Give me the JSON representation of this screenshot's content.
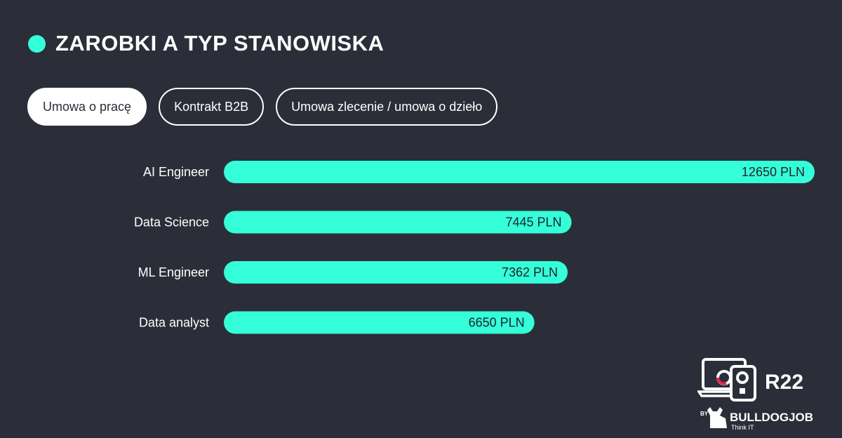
{
  "header": {
    "title": "ZAROBKI A TYP STANOWISKA"
  },
  "tabs": [
    {
      "label": "Umowa o pracę",
      "active": true
    },
    {
      "label": "Kontrakt B2B",
      "active": false
    },
    {
      "label": "Umowa zlecenie / umowa o dzieło",
      "active": false
    }
  ],
  "colors": {
    "background": "#2b2e38",
    "accent": "#34ffd9",
    "logo_accent": "#e8204e"
  },
  "chart_data": {
    "type": "bar",
    "orientation": "horizontal",
    "categories": [
      "AI Engineer",
      "Data Science",
      "ML Engineer",
      "Data analyst"
    ],
    "values": [
      12650,
      7445,
      7362,
      6650
    ],
    "value_labels": [
      "12650 PLN",
      "7445 PLN",
      "7362 PLN",
      "6650 PLN"
    ],
    "unit": "PLN",
    "xlim": [
      0,
      12650
    ]
  },
  "logo": {
    "badge": "R22",
    "by": "BY",
    "brand": "BULLDOGJOB",
    "tagline": "Think IT"
  }
}
